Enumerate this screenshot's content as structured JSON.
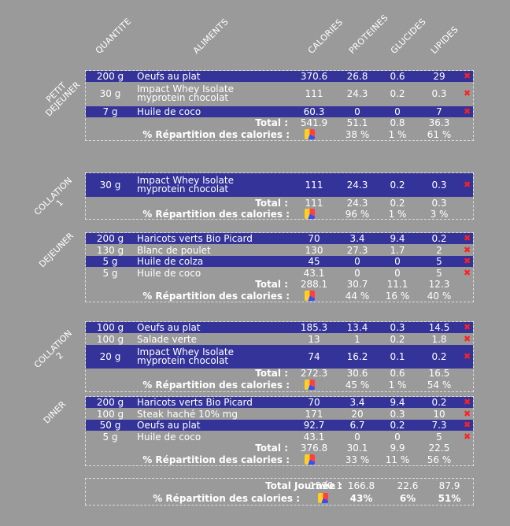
{
  "headers": [
    "QUANTITE",
    "ALIMENTS",
    "CALORIES",
    "PROTEINES",
    "GLUCIDES",
    "LIPIDES"
  ],
  "meals": [
    {
      "label": "PETIT\nDEJEUNER",
      "rows": [
        {
          "qty": "200 g",
          "food": "Oeufs au plat",
          "cal": "370.6",
          "pro": "26.8",
          "glu": "0.6",
          "lip": "29"
        },
        {
          "qty": "30 g",
          "food": "Impact Whey Isolate\nmyprotein chocolat",
          "cal": "111",
          "pro": "24.3",
          "glu": "0.2",
          "lip": "0.3"
        },
        {
          "qty": "7 g",
          "food": "Huile de coco",
          "cal": "60.3",
          "pro": "0",
          "glu": "0",
          "lip": "7"
        }
      ],
      "total": {
        "label": "Total :",
        "cal": "541.9",
        "pro": "51.1",
        "glu": "0.8",
        "lip": "36.3"
      },
      "rep": {
        "label": "% Répartition des calories :",
        "pro": "38 %",
        "glu": "1 %",
        "lip": "61 %"
      }
    },
    {
      "label": "COLLATION\n1",
      "rows": [
        {
          "qty": "30 g",
          "food": "Impact Whey Isolate\nmyprotein chocolat",
          "cal": "111",
          "pro": "24.3",
          "glu": "0.2",
          "lip": "0.3"
        }
      ],
      "total": {
        "label": "Total :",
        "cal": "111",
        "pro": "24.3",
        "glu": "0.2",
        "lip": "0.3"
      },
      "rep": {
        "label": "% Répartition des calories :",
        "pro": "96 %",
        "glu": "1 %",
        "lip": "3 %"
      }
    },
    {
      "label": "DEJEUNER",
      "rows": [
        {
          "qty": "200 g",
          "food": "Haricots verts Bio Picard",
          "cal": "70",
          "pro": "3.4",
          "glu": "9.4",
          "lip": "0.2"
        },
        {
          "qty": "130 g",
          "food": "Blanc de poulet",
          "cal": "130",
          "pro": "27.3",
          "glu": "1.7",
          "lip": "2"
        },
        {
          "qty": "5 g",
          "food": "Huile de colza",
          "cal": "45",
          "pro": "0",
          "glu": "0",
          "lip": "5"
        },
        {
          "qty": "5 g",
          "food": "Huile de coco",
          "cal": "43.1",
          "pro": "0",
          "glu": "0",
          "lip": "5"
        }
      ],
      "total": {
        "label": "Total :",
        "cal": "288.1",
        "pro": "30.7",
        "glu": "11.1",
        "lip": "12.3"
      },
      "rep": {
        "label": "% Répartition des calories :",
        "pro": "44 %",
        "glu": "16 %",
        "lip": "40 %"
      }
    },
    {
      "label": "COLLATION\n2",
      "rows": [
        {
          "qty": "100 g",
          "food": "Oeufs au plat",
          "cal": "185.3",
          "pro": "13.4",
          "glu": "0.3",
          "lip": "14.5"
        },
        {
          "qty": "100 g",
          "food": "Salade verte",
          "cal": "13",
          "pro": "1",
          "glu": "0.2",
          "lip": "1.8"
        },
        {
          "qty": "20 g",
          "food": "Impact Whey Isolate\nmyprotein chocolat",
          "cal": "74",
          "pro": "16.2",
          "glu": "0.1",
          "lip": "0.2"
        }
      ],
      "total": {
        "label": "Total :",
        "cal": "272.3",
        "pro": "30.6",
        "glu": "0.6",
        "lip": "16.5"
      },
      "rep": {
        "label": "% Répartition des calories :",
        "pro": "45 %",
        "glu": "1 %",
        "lip": "54 %"
      }
    },
    {
      "label": "DINER",
      "rows": [
        {
          "qty": "200 g",
          "food": "Haricots verts Bio Picard",
          "cal": "70",
          "pro": "3.4",
          "glu": "9.4",
          "lip": "0.2"
        },
        {
          "qty": "100 g",
          "food": "Steak haché 10% mg",
          "cal": "171",
          "pro": "20",
          "glu": "0.3",
          "lip": "10"
        },
        {
          "qty": "50 g",
          "food": "Oeufs au plat",
          "cal": "92.7",
          "pro": "6.7",
          "glu": "0.2",
          "lip": "7.3"
        },
        {
          "qty": "5 g",
          "food": "Huile de coco",
          "cal": "43.1",
          "pro": "0",
          "glu": "0",
          "lip": "5"
        }
      ],
      "total": {
        "label": "Total :",
        "cal": "376.8",
        "pro": "30.1",
        "glu": "9.9",
        "lip": "22.5"
      },
      "rep": {
        "label": "% Répartition des calories :",
        "pro": "33 %",
        "glu": "11 %",
        "lip": "56 %"
      }
    }
  ],
  "day": {
    "total_label": "Total Journée :",
    "cal": "1590.1",
    "pro": "166.8",
    "glu": "22.6",
    "lip": "87.9",
    "rep_label": "% Répartition des calories :",
    "rep_pro": "43%",
    "rep_glu": "6%",
    "rep_lip": "51%"
  },
  "icons": {
    "delete": "delete-icon",
    "pie": "pie-chart-icon"
  }
}
